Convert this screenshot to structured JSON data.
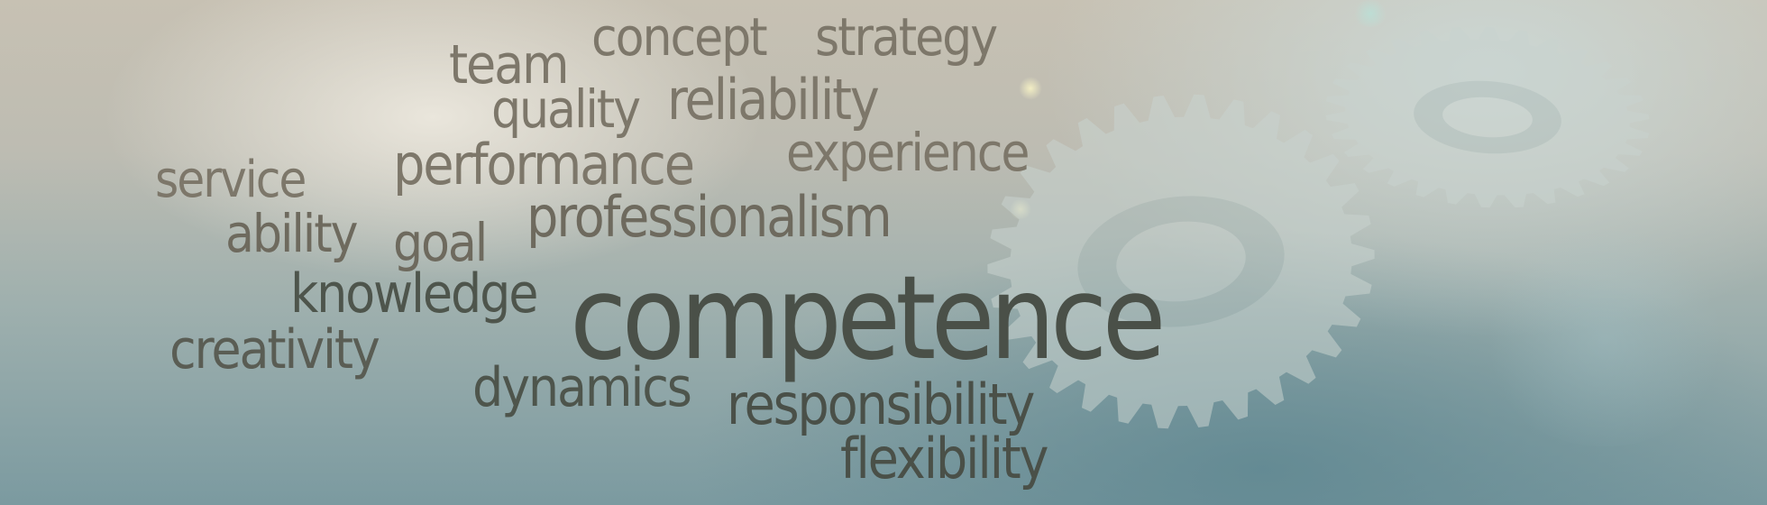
{
  "scene": {
    "description_icons": [
      "gear-icon",
      "gear-icon"
    ],
    "colors": {
      "word_dark": "#4a5048",
      "word_mid": "#6e6a5e",
      "word_light": "#7d776a",
      "gear_fill": "#c9d3cf"
    }
  },
  "words": {
    "concept": "concept",
    "strategy": "strategy",
    "team": "team",
    "quality": "quality",
    "reliability": "reliability",
    "service": "service",
    "performance": "performance",
    "experience": "experience",
    "ability": "ability",
    "goal": "goal",
    "professionalism": "professionalism",
    "knowledge": "knowledge",
    "competence": "competence",
    "creativity": "creativity",
    "dynamics": "dynamics",
    "responsibility": "responsibility",
    "flexibility": "flexibility"
  }
}
